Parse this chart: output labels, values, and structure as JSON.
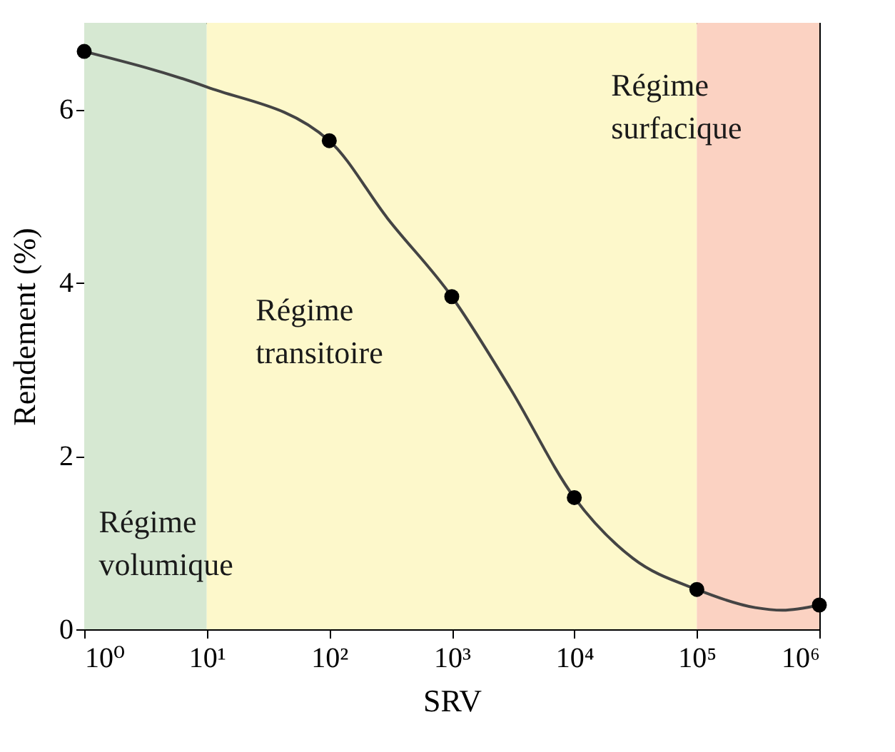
{
  "chart_data": {
    "type": "line",
    "xlabel": "SRV",
    "ylabel": "Rendement (%)",
    "log": "x",
    "xlim": [
      1,
      1000000
    ],
    "xticks": [
      {
        "value": 1,
        "label": "10⁰"
      },
      {
        "value": 10,
        "label": "10¹"
      },
      {
        "value": 100,
        "label": "10²"
      },
      {
        "value": 1000,
        "label": "10³"
      },
      {
        "value": 10000,
        "label": "10⁴"
      },
      {
        "value": 100000,
        "label": "10⁵"
      },
      {
        "value": 1000000,
        "label": "10⁶"
      }
    ],
    "ylim": [
      0,
      7
    ],
    "yticks": [
      0,
      2,
      4,
      6
    ],
    "grid": false,
    "bands": [
      {
        "axis": "x",
        "from": 1,
        "to": 10,
        "label": "Régime volumique",
        "color": "#d6e8d2"
      },
      {
        "axis": "x",
        "from": 10,
        "to": 100000,
        "label": "Régime transitoire",
        "color": "#fdf8cb"
      },
      {
        "axis": "x",
        "from": 100000,
        "to": 1000000,
        "label": "Régime surfacique",
        "color": "#fbd2c2"
      }
    ],
    "series": [
      {
        "type": "line",
        "color": "#444444",
        "line_style": "solid",
        "x": [
          1,
          10,
          100,
          300,
          1000,
          3000,
          10000,
          30000,
          100000,
          300000,
          500000,
          1000000
        ],
        "values": [
          6.67,
          6.26,
          5.64,
          4.74,
          3.84,
          2.78,
          1.52,
          0.82,
          0.46,
          0.25,
          0.22,
          0.28
        ]
      },
      {
        "type": "scatter",
        "color": "#000000",
        "marker": "circle",
        "x": [
          1,
          100,
          1000,
          10000,
          100000,
          1000000
        ],
        "values": [
          6.67,
          5.64,
          3.84,
          1.52,
          0.46,
          0.28
        ]
      }
    ]
  }
}
